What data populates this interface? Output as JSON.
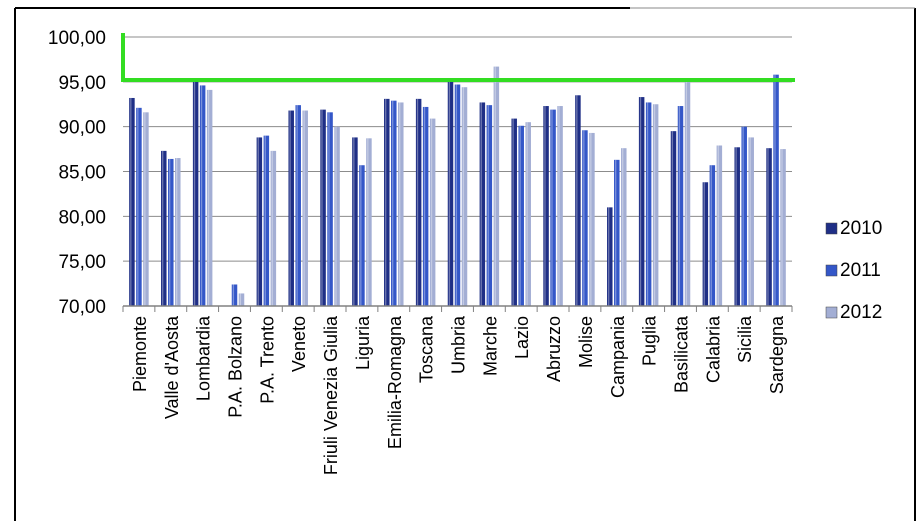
{
  "chart_data": {
    "type": "bar",
    "title": "",
    "xlabel": "",
    "ylabel": "",
    "ylim": [
      70,
      100
    ],
    "yticks": [
      "70,00",
      "75,00",
      "80,00",
      "85,00",
      "90,00",
      "95,00",
      "100,00"
    ],
    "grid": true,
    "legend_position": "right",
    "categories": [
      "Piemonte",
      "Valle d'Aosta",
      "Lombardia",
      "P.A. Bolzano",
      "P.A. Trento",
      "Veneto",
      "Friuli Venezia Giulia",
      "Liguria",
      "Emilia-Romagna",
      "Toscana",
      "Umbria",
      "Marche",
      "Lazio",
      "Abruzzo",
      "Molise",
      "Campania",
      "Puglia",
      "Basilicata",
      "Calabria",
      "Sicilia",
      "Sardegna"
    ],
    "series": [
      {
        "name": "2010",
        "color": "#1f2f86",
        "values": [
          93.2,
          87.3,
          95.0,
          70.0,
          88.8,
          91.8,
          91.9,
          88.8,
          93.1,
          93.1,
          95.0,
          92.7,
          90.9,
          92.3,
          93.5,
          81.0,
          93.3,
          89.5,
          83.8,
          87.7,
          87.6
        ]
      },
      {
        "name": "2011",
        "color": "#3457c8",
        "values": [
          92.1,
          86.4,
          94.6,
          72.4,
          89.0,
          92.4,
          91.6,
          85.7,
          92.9,
          92.2,
          94.7,
          92.4,
          90.1,
          91.9,
          89.6,
          86.3,
          92.7,
          92.3,
          85.7,
          90.0,
          95.8
        ]
      },
      {
        "name": "2012",
        "color": "#a3aed4",
        "values": [
          91.6,
          86.5,
          94.1,
          71.4,
          87.3,
          91.8,
          90.0,
          88.7,
          92.7,
          90.9,
          94.4,
          96.7,
          90.5,
          92.3,
          89.3,
          87.6,
          92.5,
          95.0,
          87.9,
          88.8,
          87.5
        ]
      }
    ],
    "threshold": {
      "value": 95.2,
      "color": "#33dd22"
    }
  }
}
